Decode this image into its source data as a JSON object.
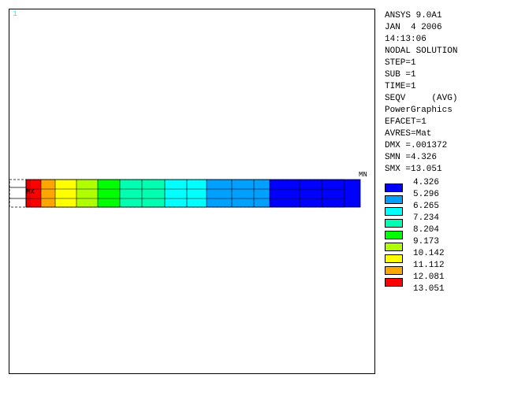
{
  "viewport": {
    "window_number": "1",
    "labels": {
      "max_node": "MX",
      "min_node": "MN"
    }
  },
  "info": {
    "lines": [
      "ANSYS 9.0A1",
      "JAN  4 2006",
      "14:13:06",
      "NODAL SOLUTION",
      "STEP=1",
      "SUB =1",
      "TIME=1",
      "SEQV     (AVG)",
      "PowerGraphics",
      "EFACET=1",
      "AVRES=Mat",
      "DMX =.001372",
      "SMN =4.326",
      "SMX =13.051"
    ]
  },
  "legend": {
    "colors": [
      "#0000ff",
      "#00a0ff",
      "#00ffff",
      "#00ffb0",
      "#00ff00",
      "#b0ff00",
      "#ffff00",
      "#ffa500",
      "#ff0000"
    ],
    "values": [
      "4.326",
      "5.296",
      "6.265",
      "7.234",
      "8.204",
      "9.173",
      "10.142",
      "11.112",
      "12.081",
      "13.051"
    ]
  },
  "contour_bands": [
    "#ff0000",
    "#ffa500",
    "#ffff00",
    "#b0ff00",
    "#00ff00",
    "#00ffb0",
    "#00ffff",
    "#00a0ff",
    "#0000ff"
  ]
}
